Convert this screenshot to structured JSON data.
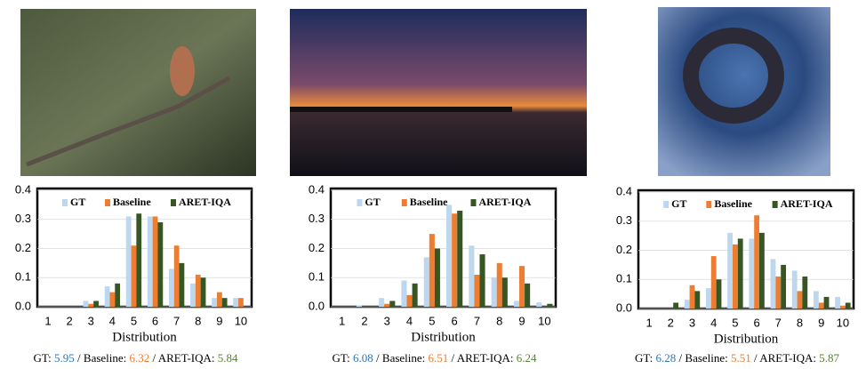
{
  "chart_data": [
    {
      "type": "bar",
      "xlabel": "Distribution",
      "categories": [
        "1",
        "2",
        "3",
        "4",
        "5",
        "6",
        "7",
        "8",
        "9",
        "10"
      ],
      "series": [
        {
          "name": "GT",
          "color": "#bdd7ee",
          "values": [
            0,
            0,
            0.02,
            0.07,
            0.31,
            0.31,
            0.13,
            0.08,
            0.03,
            0.03
          ]
        },
        {
          "name": "Baseline",
          "color": "#ed7d31",
          "values": [
            0,
            0,
            0.01,
            0.05,
            0.21,
            0.31,
            0.21,
            0.11,
            0.05,
            0.03
          ]
        },
        {
          "name": "ARET-IQA",
          "color": "#375623",
          "values": [
            0,
            0,
            0.02,
            0.08,
            0.32,
            0.29,
            0.15,
            0.1,
            0.03,
            0
          ]
        }
      ],
      "ylim": [
        0,
        0.4
      ],
      "yticks": [
        {
          "value": 0,
          "label": "0.0"
        },
        0.1,
        0.2,
        0.3,
        0.4
      ],
      "grid": true,
      "caption": [
        {
          "text": "GT: "
        },
        {
          "text": "5.95",
          "color": "#2e75b6"
        },
        {
          "text": " / Baseline: "
        },
        {
          "text": "6.32",
          "color": "#ed7d31"
        },
        {
          "text": " / ARET-IQA: "
        },
        {
          "text": "5.84",
          "color": "#548235"
        }
      ]
    },
    {
      "type": "bar",
      "xlabel": "Distribution",
      "categories": [
        "1",
        "2",
        "3",
        "4",
        "5",
        "6",
        "7",
        "8",
        "9",
        "10"
      ],
      "series": [
        {
          "name": "GT",
          "color": "#bdd7ee",
          "values": [
            0,
            0.005,
            0.03,
            0.09,
            0.17,
            0.35,
            0.21,
            0.1,
            0.02,
            0.015
          ]
        },
        {
          "name": "Baseline",
          "color": "#ed7d31",
          "values": [
            0,
            0,
            0.01,
            0.04,
            0.25,
            0.32,
            0.11,
            0.15,
            0.14,
            0
          ]
        },
        {
          "name": "ARET-IQA",
          "color": "#375623",
          "values": [
            0,
            0,
            0.02,
            0.08,
            0.2,
            0.33,
            0.18,
            0.1,
            0.08,
            0.01
          ]
        }
      ],
      "ylim": [
        0,
        0.4
      ],
      "yticks": [
        {
          "value": 0,
          "label": "0.0"
        },
        0.1,
        0.2,
        0.3,
        0.4
      ],
      "grid": true,
      "caption": [
        {
          "text": "GT: "
        },
        {
          "text": "6.08",
          "color": "#2e75b6"
        },
        {
          "text": " / Baseline: "
        },
        {
          "text": "6.51",
          "color": "#ed7d31"
        },
        {
          "text": " / ARET-IQA: "
        },
        {
          "text": "6.24",
          "color": "#548235"
        }
      ]
    },
    {
      "type": "bar",
      "xlabel": "Distribution",
      "categories": [
        "1",
        "2",
        "3",
        "4",
        "5",
        "6",
        "7",
        "8",
        "9",
        "10"
      ],
      "series": [
        {
          "name": "GT",
          "color": "#bdd7ee",
          "values": [
            0,
            0,
            0.03,
            0.07,
            0.26,
            0.24,
            0.17,
            0.13,
            0.06,
            0.04
          ]
        },
        {
          "name": "Baseline",
          "color": "#ed7d31",
          "values": [
            0,
            0,
            0.08,
            0.18,
            0.22,
            0.32,
            0.11,
            0.06,
            0.02,
            0.01
          ]
        },
        {
          "name": "ARET-IQA",
          "color": "#375623",
          "values": [
            0,
            0.02,
            0.06,
            0.1,
            0.24,
            0.26,
            0.15,
            0.11,
            0.04,
            0.02
          ]
        }
      ],
      "ylim": [
        0,
        0.4
      ],
      "yticks": [
        {
          "value": 0,
          "label": "0.0"
        },
        0.1,
        0.2,
        0.3,
        0.4
      ],
      "grid": true,
      "caption": [
        {
          "text": "GT: "
        },
        {
          "text": "6.28",
          "color": "#2e75b6"
        },
        {
          "text": " / Baseline: "
        },
        {
          "text": "5.51",
          "color": "#ed7d31"
        },
        {
          "text": " / ARET-IQA: "
        },
        {
          "text": "5.87",
          "color": "#548235"
        }
      ]
    }
  ]
}
